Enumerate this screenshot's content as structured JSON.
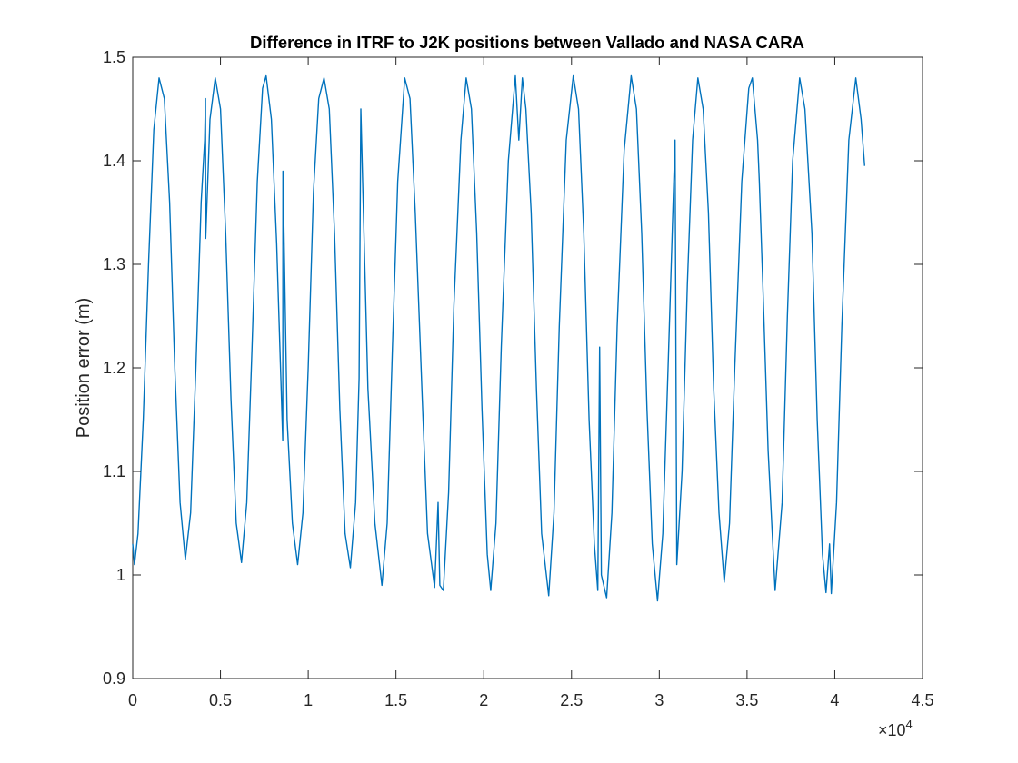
{
  "chart_data": {
    "type": "line",
    "title": "Difference in ITRF to J2K positions between Vallado and NASA CARA",
    "xlabel": "",
    "ylabel": "Position error (m)",
    "x_exponent_prefix": "×10",
    "x_exponent_power": "4",
    "xlim": [
      0,
      45000
    ],
    "ylim": [
      0.9,
      1.5
    ],
    "x_scale": 10000,
    "x_ticks": [
      0,
      5000,
      10000,
      15000,
      20000,
      25000,
      30000,
      35000,
      40000,
      45000
    ],
    "x_tick_labels": [
      "0",
      "0.5",
      "1",
      "1.5",
      "2",
      "2.5",
      "3",
      "3.5",
      "4",
      "4.5"
    ],
    "y_ticks": [
      0.9,
      1.0,
      1.1,
      1.2,
      1.3,
      1.4,
      1.5
    ],
    "y_tick_labels": [
      "0.9",
      "1",
      "1.1",
      "1.2",
      "1.3",
      "1.4",
      "1.5"
    ],
    "grid": false,
    "legend": "none",
    "series": [
      {
        "color": "#0072BD",
        "points": [
          [
            0,
            1.03
          ],
          [
            100,
            1.01
          ],
          [
            300,
            1.04
          ],
          [
            600,
            1.15
          ],
          [
            900,
            1.3
          ],
          [
            1200,
            1.43
          ],
          [
            1500,
            1.48
          ],
          [
            1800,
            1.46
          ],
          [
            2100,
            1.36
          ],
          [
            2400,
            1.2
          ],
          [
            2700,
            1.07
          ],
          [
            3000,
            1.015
          ],
          [
            3300,
            1.06
          ],
          [
            3600,
            1.2
          ],
          [
            3900,
            1.36
          ],
          [
            4100,
            1.42
          ],
          [
            4150,
            1.46
          ],
          [
            4160,
            1.325
          ],
          [
            4400,
            1.44
          ],
          [
            4700,
            1.48
          ],
          [
            5000,
            1.45
          ],
          [
            5300,
            1.33
          ],
          [
            5600,
            1.17
          ],
          [
            5900,
            1.05
          ],
          [
            6200,
            1.012
          ],
          [
            6500,
            1.07
          ],
          [
            6800,
            1.22
          ],
          [
            7100,
            1.38
          ],
          [
            7400,
            1.47
          ],
          [
            7600,
            1.482
          ],
          [
            7900,
            1.44
          ],
          [
            8200,
            1.32
          ],
          [
            8550,
            1.13
          ],
          [
            8560,
            1.39
          ],
          [
            8800,
            1.15
          ],
          [
            9100,
            1.05
          ],
          [
            9400,
            1.01
          ],
          [
            9700,
            1.06
          ],
          [
            10000,
            1.2
          ],
          [
            10300,
            1.37
          ],
          [
            10600,
            1.46
          ],
          [
            10900,
            1.48
          ],
          [
            11200,
            1.45
          ],
          [
            11500,
            1.33
          ],
          [
            11800,
            1.16
          ],
          [
            12100,
            1.04
          ],
          [
            12400,
            1.007
          ],
          [
            12700,
            1.07
          ],
          [
            12900,
            1.19
          ],
          [
            13000,
            1.45
          ],
          [
            13100,
            1.38
          ],
          [
            13400,
            1.18
          ],
          [
            13800,
            1.05
          ],
          [
            14200,
            0.99
          ],
          [
            14500,
            1.05
          ],
          [
            14800,
            1.22
          ],
          [
            15100,
            1.38
          ],
          [
            15500,
            1.48
          ],
          [
            15800,
            1.46
          ],
          [
            16100,
            1.35
          ],
          [
            16500,
            1.17
          ],
          [
            16800,
            1.04
          ],
          [
            17200,
            0.988
          ],
          [
            17400,
            1.07
          ],
          [
            17500,
            0.99
          ],
          [
            17700,
            0.985
          ],
          [
            18000,
            1.08
          ],
          [
            18300,
            1.26
          ],
          [
            18700,
            1.42
          ],
          [
            19000,
            1.48
          ],
          [
            19300,
            1.45
          ],
          [
            19600,
            1.33
          ],
          [
            19900,
            1.16
          ],
          [
            20200,
            1.02
          ],
          [
            20400,
            0.985
          ],
          [
            20700,
            1.05
          ],
          [
            21000,
            1.22
          ],
          [
            21400,
            1.4
          ],
          [
            21800,
            1.482
          ],
          [
            22000,
            1.42
          ],
          [
            22200,
            1.48
          ],
          [
            22400,
            1.45
          ],
          [
            22700,
            1.35
          ],
          [
            23000,
            1.18
          ],
          [
            23300,
            1.04
          ],
          [
            23700,
            0.98
          ],
          [
            24000,
            1.06
          ],
          [
            24300,
            1.24
          ],
          [
            24700,
            1.42
          ],
          [
            25100,
            1.482
          ],
          [
            25400,
            1.45
          ],
          [
            25700,
            1.33
          ],
          [
            26000,
            1.15
          ],
          [
            26300,
            1.03
          ],
          [
            26500,
            0.985
          ],
          [
            26600,
            1.22
          ],
          [
            26700,
            1.0
          ],
          [
            27000,
            0.978
          ],
          [
            27300,
            1.06
          ],
          [
            27600,
            1.24
          ],
          [
            28000,
            1.41
          ],
          [
            28400,
            1.482
          ],
          [
            28700,
            1.45
          ],
          [
            29000,
            1.33
          ],
          [
            29300,
            1.16
          ],
          [
            29600,
            1.03
          ],
          [
            29900,
            0.975
          ],
          [
            30200,
            1.04
          ],
          [
            30500,
            1.2
          ],
          [
            30900,
            1.42
          ],
          [
            31000,
            1.01
          ],
          [
            31300,
            1.1
          ],
          [
            31600,
            1.28
          ],
          [
            31900,
            1.42
          ],
          [
            32200,
            1.48
          ],
          [
            32500,
            1.45
          ],
          [
            32800,
            1.35
          ],
          [
            33100,
            1.18
          ],
          [
            33400,
            1.06
          ],
          [
            33700,
            0.993
          ],
          [
            34000,
            1.05
          ],
          [
            34300,
            1.2
          ],
          [
            34700,
            1.38
          ],
          [
            35100,
            1.47
          ],
          [
            35300,
            1.48
          ],
          [
            35600,
            1.42
          ],
          [
            35700,
            1.38
          ],
          [
            35900,
            1.28
          ],
          [
            36200,
            1.12
          ],
          [
            36600,
            0.985
          ],
          [
            37000,
            1.07
          ],
          [
            37300,
            1.25
          ],
          [
            37600,
            1.4
          ],
          [
            38000,
            1.48
          ],
          [
            38300,
            1.45
          ],
          [
            38700,
            1.33
          ],
          [
            39000,
            1.15
          ],
          [
            39300,
            1.02
          ],
          [
            39500,
            0.983
          ],
          [
            39700,
            1.03
          ],
          [
            39800,
            0.982
          ],
          [
            40100,
            1.07
          ],
          [
            40400,
            1.24
          ],
          [
            40800,
            1.42
          ],
          [
            41200,
            1.48
          ],
          [
            41500,
            1.44
          ],
          [
            41700,
            1.395
          ]
        ]
      }
    ]
  }
}
